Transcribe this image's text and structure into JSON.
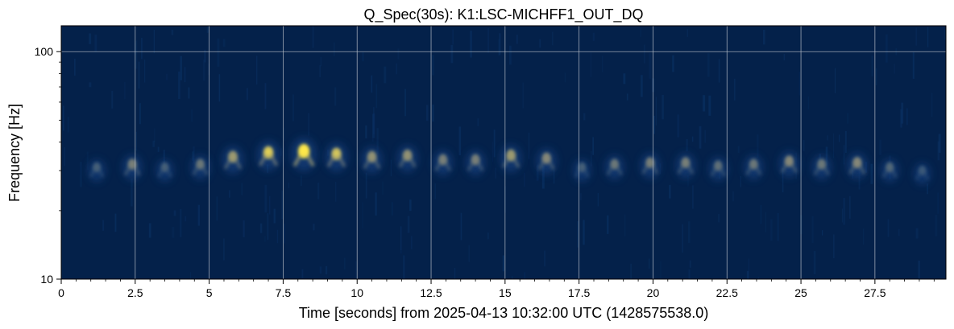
{
  "chart_data": {
    "type": "heatmap",
    "title": "Q_Spec(30s): K1:LSC-MICHFF1_OUT_DQ",
    "xlabel": "Time [seconds] from 2025-04-13 10:32:00 UTC (1428575538.0)",
    "ylabel": "Frequency [Hz]",
    "xlim": [
      0,
      29.9
    ],
    "ylim": [
      10,
      130
    ],
    "yscale": "log",
    "grid": true,
    "x_ticks": [
      0,
      2.5,
      5,
      7.5,
      10,
      12.5,
      15,
      17.5,
      20,
      22.5,
      25,
      27.5
    ],
    "x_tick_labels": [
      "0",
      "2.5",
      "5",
      "7.5",
      "10",
      "12.5",
      "15",
      "17.5",
      "20",
      "22.5",
      "25",
      "27.5"
    ],
    "y_ticks": [
      10,
      100
    ],
    "y_tick_labels": [
      "10",
      "100"
    ],
    "colors": {
      "background": "#04214a",
      "low": "#0a3a78",
      "mid": "#8a8a78",
      "high": "#ffe94a",
      "grid": "#b8bfc8"
    },
    "blobs": [
      {
        "t": 1.2,
        "f": 31.0,
        "intensity": 0.25
      },
      {
        "t": 2.4,
        "f": 32.0,
        "intensity": 0.45
      },
      {
        "t": 3.5,
        "f": 31.0,
        "intensity": 0.25
      },
      {
        "t": 4.7,
        "f": 32.0,
        "intensity": 0.4
      },
      {
        "t": 5.8,
        "f": 34.5,
        "intensity": 0.6
      },
      {
        "t": 7.0,
        "f": 36.0,
        "intensity": 0.75
      },
      {
        "t": 8.2,
        "f": 36.5,
        "intensity": 1.0
      },
      {
        "t": 9.3,
        "f": 35.5,
        "intensity": 0.7
      },
      {
        "t": 10.5,
        "f": 34.5,
        "intensity": 0.55
      },
      {
        "t": 11.7,
        "f": 35.0,
        "intensity": 0.55
      },
      {
        "t": 12.9,
        "f": 33.5,
        "intensity": 0.45
      },
      {
        "t": 14.0,
        "f": 33.5,
        "intensity": 0.45
      },
      {
        "t": 15.2,
        "f": 35.0,
        "intensity": 0.6
      },
      {
        "t": 16.4,
        "f": 34.0,
        "intensity": 0.5
      },
      {
        "t": 17.6,
        "f": 31.0,
        "intensity": 0.25
      },
      {
        "t": 18.7,
        "f": 32.0,
        "intensity": 0.4
      },
      {
        "t": 19.9,
        "f": 32.5,
        "intensity": 0.45
      },
      {
        "t": 21.1,
        "f": 32.5,
        "intensity": 0.45
      },
      {
        "t": 22.2,
        "f": 31.5,
        "intensity": 0.35
      },
      {
        "t": 23.4,
        "f": 32.0,
        "intensity": 0.4
      },
      {
        "t": 24.6,
        "f": 33.0,
        "intensity": 0.5
      },
      {
        "t": 25.7,
        "f": 32.0,
        "intensity": 0.4
      },
      {
        "t": 26.9,
        "f": 32.5,
        "intensity": 0.5
      },
      {
        "t": 28.0,
        "f": 31.0,
        "intensity": 0.3
      },
      {
        "t": 29.1,
        "f": 30.0,
        "intensity": 0.2
      }
    ]
  }
}
